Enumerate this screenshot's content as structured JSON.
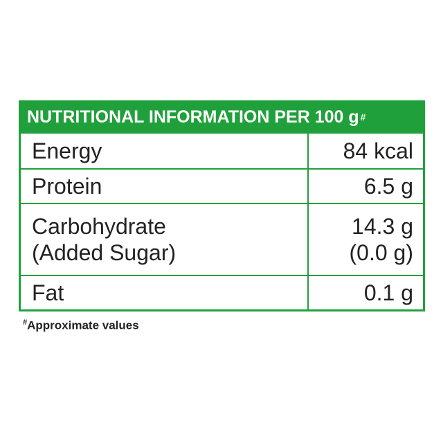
{
  "colors": {
    "accent_green": "#20a03a",
    "text": "#222222",
    "header_text": "#ffffff"
  },
  "header": {
    "title": "NUTRITIONAL INFORMATION PER 100 g",
    "mark": "#"
  },
  "rows": [
    {
      "name": "Energy",
      "value": "84 kcal"
    },
    {
      "name": "Protein",
      "value": "6.5 g"
    },
    {
      "name": "Carbohydrate",
      "sub_name": "(Added Sugar)",
      "value": "14.3 g",
      "sub_value": "(0.0 g)"
    },
    {
      "name": "Fat",
      "value": "0.1 g"
    }
  ],
  "footnote": {
    "mark": "#",
    "text": "Approximate values"
  }
}
